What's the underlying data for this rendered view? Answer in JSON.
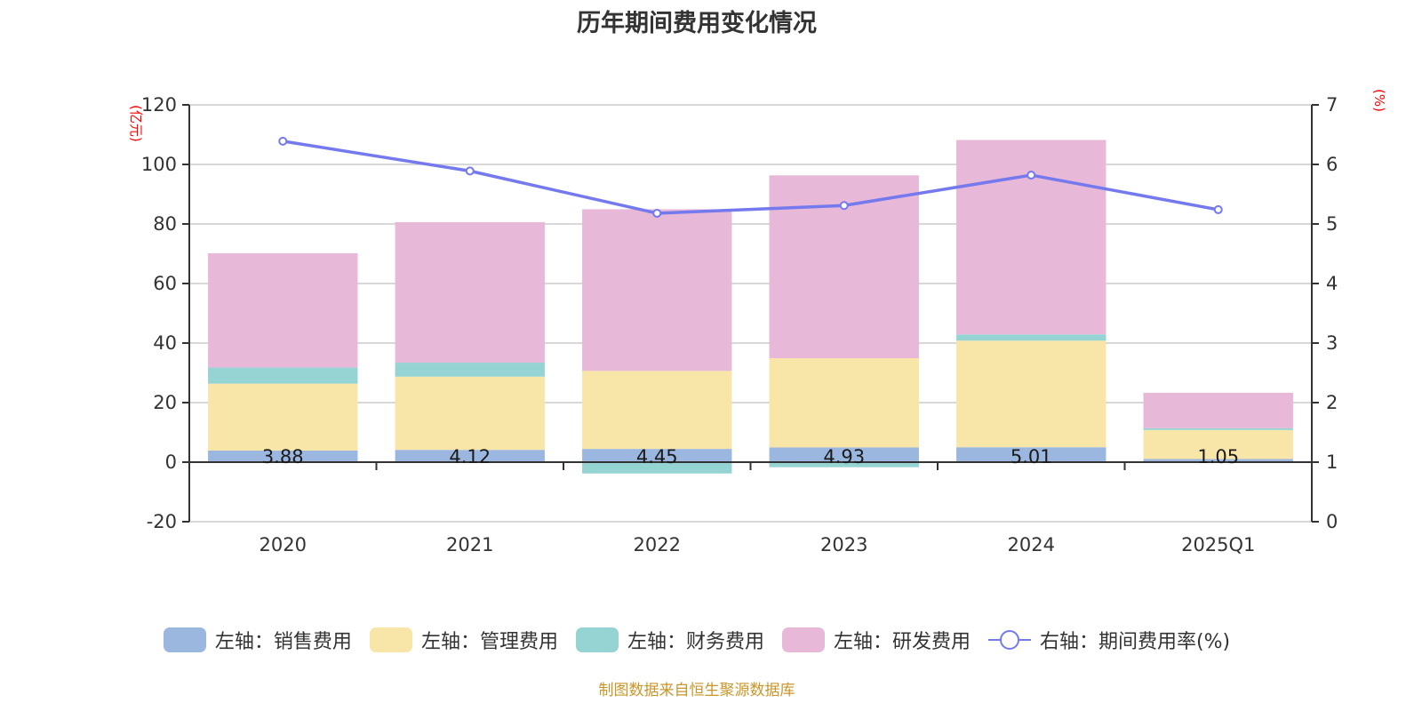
{
  "chart_data": {
    "type": "bar",
    "title": "历年期间费用变化情况",
    "categories": [
      "2020",
      "2021",
      "2022",
      "2023",
      "2024",
      "2025Q1"
    ],
    "stacked": true,
    "left_axis": {
      "unit_label": "(亿元)",
      "range": [
        -20,
        120
      ],
      "ticks": [
        -20,
        0,
        20,
        40,
        60,
        80,
        100,
        120
      ]
    },
    "right_axis": {
      "unit_label": "(%)",
      "range": [
        0,
        7
      ],
      "ticks": [
        0,
        1,
        2,
        3,
        4,
        5,
        6,
        7
      ]
    },
    "grid": true,
    "series": [
      {
        "name": "左轴：销售费用",
        "type": "bar",
        "axis": "left",
        "color": "#9bb7e0",
        "values": [
          3.88,
          4.12,
          4.45,
          4.93,
          5.01,
          1.05
        ],
        "labels": [
          "3.88",
          "4.12",
          "4.45",
          "4.93",
          "5.01",
          "1.05"
        ]
      },
      {
        "name": "左轴：管理费用",
        "type": "bar",
        "axis": "left",
        "color": "#f8e6a8",
        "values": [
          22.5,
          24.6,
          26.2,
          30.0,
          35.8,
          9.75
        ]
      },
      {
        "name": "左轴：财务费用",
        "type": "bar",
        "axis": "left",
        "color": "#96d3d3",
        "values": [
          5.4,
          4.7,
          -3.8,
          -1.7,
          2.1,
          0.6
        ]
      },
      {
        "name": "左轴：研发费用",
        "type": "bar",
        "axis": "left",
        "color": "#e7b8d8",
        "values": [
          38.4,
          47.2,
          54.3,
          61.4,
          65.3,
          11.9
        ]
      },
      {
        "name": "右轴：期间费用率(%)",
        "type": "line",
        "axis": "right",
        "color": "#7479ee",
        "values": [
          6.39,
          5.89,
          5.18,
          5.31,
          5.82,
          5.24
        ]
      }
    ],
    "legend_position": "bottom"
  },
  "footer": {
    "source": "制图数据来自恒生聚源数据库"
  }
}
